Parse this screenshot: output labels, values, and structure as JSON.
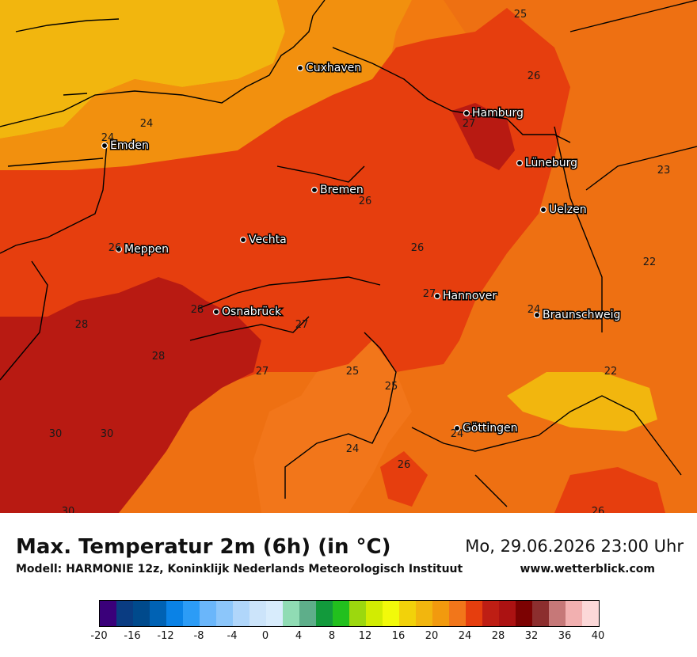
{
  "title": "Max. Temperatur 2m (6h) (in °C)",
  "datetime": "Mo, 29.06.2026 23:00 Uhr",
  "model_line": "Modell: HARMONIE 12z, Koninklijk Nederlands Meteorologisch Instituut",
  "site": "www.wetterblick.com",
  "cities": [
    {
      "name": "Cuxhaven",
      "icon": "city-dot-icon"
    },
    {
      "name": "Hamburg",
      "icon": "city-dot-icon"
    },
    {
      "name": "Emden",
      "icon": "city-dot-icon"
    },
    {
      "name": "Lüneburg",
      "icon": "city-dot-icon"
    },
    {
      "name": "Bremen",
      "icon": "city-dot-icon"
    },
    {
      "name": "Uelzen",
      "icon": "city-dot-icon"
    },
    {
      "name": "Vechta",
      "icon": "city-dot-icon"
    },
    {
      "name": "Meppen",
      "icon": "city-dot-icon"
    },
    {
      "name": "Hannover",
      "icon": "city-dot-icon"
    },
    {
      "name": "Osnabrück",
      "icon": "city-dot-icon"
    },
    {
      "name": "Braunschweig",
      "icon": "city-dot-icon"
    },
    {
      "name": "Göttingen",
      "icon": "city-dot-icon"
    }
  ],
  "contour_labels": [
    "25",
    "26",
    "24",
    "27",
    "24",
    "26",
    "23",
    "26",
    "26",
    "22",
    "28",
    "24",
    "27",
    "28",
    "27",
    "27",
    "25",
    "25",
    "22",
    "28",
    "30",
    "30",
    "24",
    "24",
    "26",
    "30",
    "26"
  ],
  "legend": {
    "colors": [
      "#3a007a",
      "#0a3c82",
      "#004a8c",
      "#0062b4",
      "#0a82e6",
      "#2c9cf6",
      "#6ab6fa",
      "#8cc6fa",
      "#b0d6fa",
      "#cce4fa",
      "#d8ecfc",
      "#90dcb4",
      "#5eae8a",
      "#129a3c",
      "#22c01e",
      "#9cd80e",
      "#d2ec02",
      "#f2fa0a",
      "#f2d20a",
      "#f2b60e",
      "#f29a0e",
      "#f2761a",
      "#e63e0e",
      "#be1e14",
      "#ac1212",
      "#7c0202",
      "#8c2e2e",
      "#c67878",
      "#f2b0b0",
      "#fcd8d8"
    ],
    "ticks": [
      "-20",
      "-16",
      "-12",
      "-8",
      "-4",
      "0",
      "4",
      "8",
      "12",
      "16",
      "20",
      "24",
      "28",
      "32",
      "36",
      "40"
    ]
  }
}
